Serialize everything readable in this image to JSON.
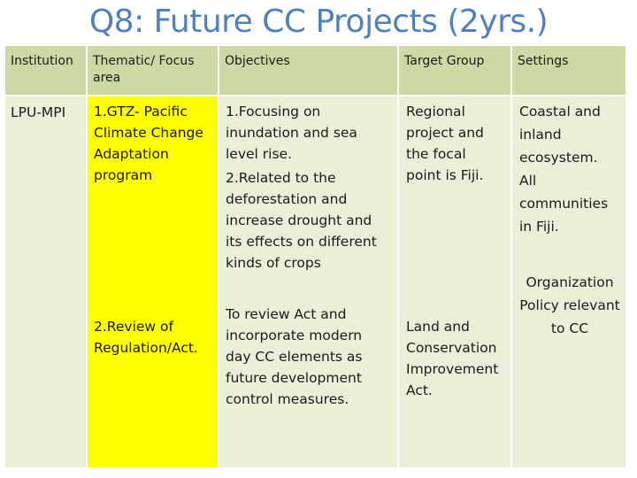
{
  "slide": {
    "title": "Q8: Future CC Projects (2yrs.)"
  },
  "table": {
    "headers": {
      "institution": "Institution",
      "thematic": "Thematic/ Focus area",
      "objectives": "Objectives",
      "target": "Target Group",
      "settings": "Settings"
    },
    "row": {
      "institution": "LPU-MPI",
      "thematic_1": "1.GTZ- Pacific Climate Change Adaptation program",
      "objectives_1": "1.Focusing on inundation and sea level rise.",
      "objectives_1b": "2.Related to the deforestation and increase drought and its effects on different kinds of crops",
      "target_1": "Regional project and the focal point is Fiji.",
      "settings_1": "Coastal and inland ecosystem. All communities in Fiji.",
      "thematic_2": "2.Review of Regulation/Act.",
      "objectives_2": "To review Act and incorporate modern day CC elements as future development control measures.",
      "target_2": "Land and Conservation Improvement Act.",
      "settings_2": "Organization Policy relevant to CC"
    }
  }
}
